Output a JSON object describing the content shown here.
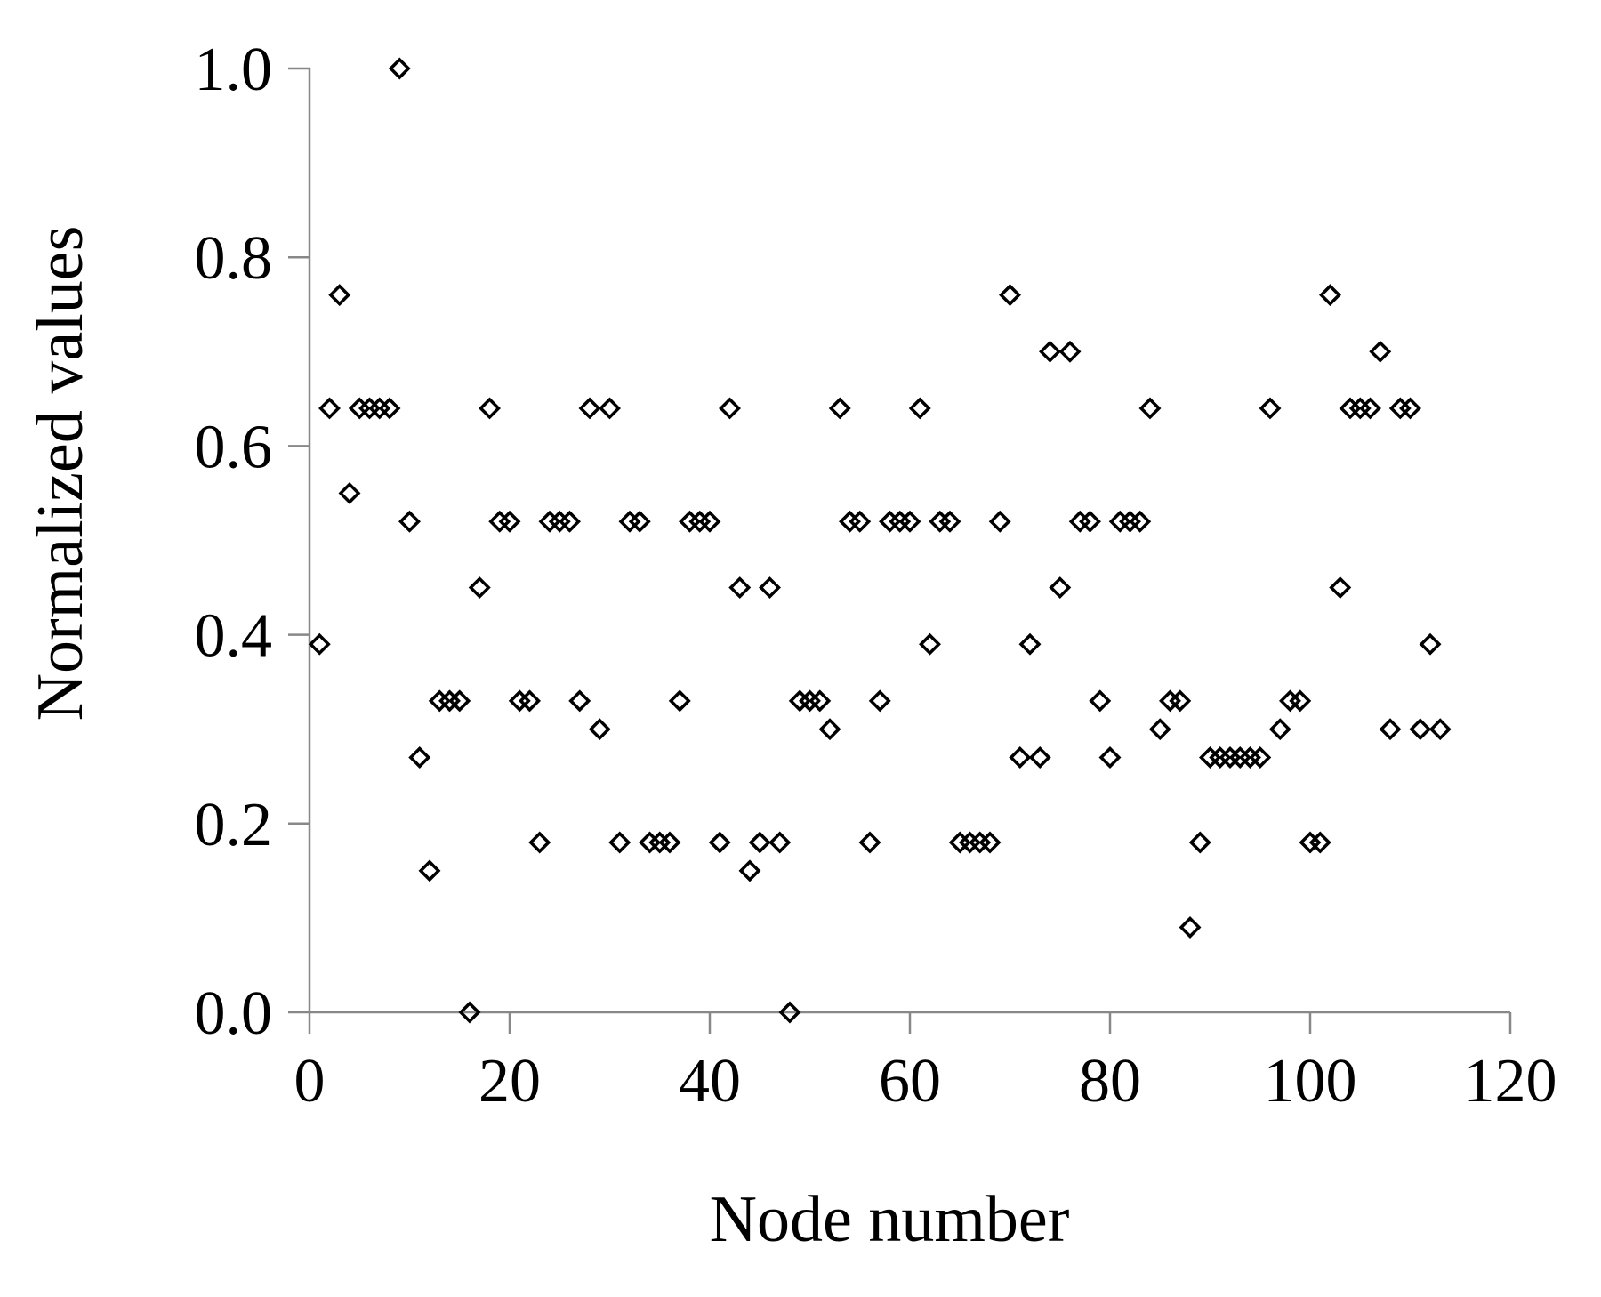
{
  "chart_data": {
    "type": "scatter",
    "x_label": "Node number",
    "y_label": "Normalized values",
    "x": [
      1,
      2,
      3,
      4,
      5,
      6,
      7,
      8,
      9,
      10,
      11,
      12,
      13,
      14,
      15,
      16,
      17,
      18,
      19,
      20,
      21,
      22,
      23,
      24,
      25,
      26,
      27,
      28,
      29,
      30,
      31,
      32,
      33,
      34,
      35,
      36,
      37,
      38,
      39,
      40,
      41,
      42,
      43,
      44,
      45,
      46,
      47,
      48,
      49,
      50,
      51,
      52,
      53,
      54,
      55,
      56,
      57,
      58,
      59,
      60,
      61,
      62,
      63,
      64,
      65,
      66,
      67,
      68,
      69,
      70,
      71,
      72,
      73,
      74,
      75,
      76,
      77,
      78,
      79,
      80,
      81,
      82,
      83,
      84,
      85,
      86,
      87,
      88,
      89,
      90,
      91,
      92,
      93,
      94,
      95,
      96,
      97,
      98,
      99,
      100,
      101,
      102,
      103,
      104,
      105,
      106,
      107,
      108,
      109,
      110,
      111,
      112,
      113
    ],
    "values": [
      0.39,
      0.64,
      0.76,
      0.55,
      0.64,
      0.64,
      0.64,
      0.64,
      1.0,
      0.52,
      0.27,
      0.15,
      0.33,
      0.33,
      0.33,
      0.0,
      0.45,
      0.64,
      0.52,
      0.52,
      0.33,
      0.33,
      0.18,
      0.52,
      0.52,
      0.52,
      0.33,
      0.64,
      0.3,
      0.64,
      0.18,
      0.52,
      0.52,
      0.18,
      0.18,
      0.18,
      0.33,
      0.52,
      0.52,
      0.52,
      0.18,
      0.64,
      0.45,
      0.15,
      0.18,
      0.45,
      0.18,
      0.0,
      0.33,
      0.33,
      0.33,
      0.3,
      0.64,
      0.52,
      0.52,
      0.18,
      0.33,
      0.52,
      0.52,
      0.52,
      0.64,
      0.39,
      0.52,
      0.52,
      0.18,
      0.18,
      0.18,
      0.18,
      0.52,
      0.76,
      0.27,
      0.39,
      0.27,
      0.7,
      0.45,
      0.7,
      0.52,
      0.52,
      0.33,
      0.27,
      0.52,
      0.52,
      0.52,
      0.64,
      0.3,
      0.33,
      0.33,
      0.09,
      0.18,
      0.27,
      0.27,
      0.27,
      0.27,
      0.27,
      0.27,
      0.64,
      0.3,
      0.33,
      0.33,
      0.18,
      0.18,
      0.76,
      0.45,
      0.64,
      0.64,
      0.64,
      0.7,
      0.3,
      0.64,
      0.64,
      0.3,
      0.39,
      0.3
    ],
    "color": "#000000",
    "xlim": [
      0,
      120
    ],
    "xticks": [
      0,
      20,
      40,
      60,
      80,
      100,
      120
    ],
    "ylim": [
      0,
      1
    ],
    "yticks": [
      {
        "value": 0,
        "label": "0.0"
      },
      0.2,
      0.4,
      0.6,
      0.8,
      {
        "value": 1,
        "label": "1.0"
      }
    ],
    "grid": false
  }
}
